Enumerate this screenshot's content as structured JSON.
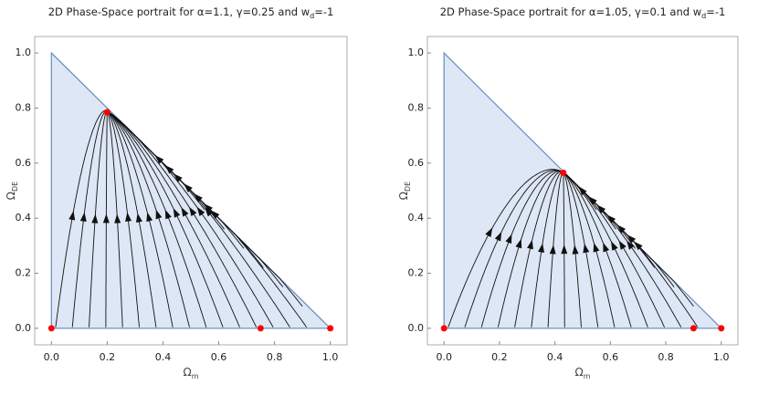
{
  "chart_data": [
    {
      "type": "stream",
      "title": "2D Phase-Space portrait for α=1.1, γ=0.25 and w",
      "title_subscript": "d",
      "title_end": "=-1",
      "xlabel": "Ω",
      "xlabel_subscript": "m",
      "ylabel": "Ω",
      "ylabel_subscript": "DE",
      "domain": {
        "x": [
          0,
          0,
          1
        ],
        "y": [
          0,
          1,
          0
        ],
        "color": "#dde7f5",
        "edge_color": "#7193c2"
      },
      "series": [
        {
          "name": "fixed points",
          "color": "#ff0000",
          "x": [
            0,
            0.2,
            0.75,
            1
          ],
          "values": [
            0,
            0.785,
            0,
            0
          ]
        }
      ],
      "xlim": [
        -0.06,
        1.06
      ],
      "ylim": [
        -0.06,
        1.06
      ],
      "xticks": [
        {
          "value": 0,
          "label": "0.0"
        },
        0.2,
        0.4,
        0.6,
        0.8,
        {
          "value": 1,
          "label": "1.0"
        }
      ],
      "yticks": [
        {
          "value": 0,
          "label": "0.0"
        },
        0.2,
        0.4,
        0.6,
        0.8,
        {
          "value": 1,
          "label": "1.0"
        }
      ]
    },
    {
      "type": "stream",
      "title": "2D Phase-Space portrait for α=1.05, γ=0.1 and w",
      "title_subscript": "d",
      "title_end": "=-1",
      "xlabel": "Ω",
      "xlabel_subscript": "m",
      "ylabel": "Ω",
      "ylabel_subscript": "DE",
      "domain": {
        "x": [
          0,
          0,
          1
        ],
        "y": [
          0,
          1,
          0
        ],
        "color": "#dde7f5",
        "edge_color": "#7193c2"
      },
      "series": [
        {
          "name": "fixed points",
          "color": "#ff0000",
          "x": [
            0,
            0.43,
            0.9,
            1
          ],
          "values": [
            0,
            0.565,
            0,
            0
          ]
        }
      ],
      "xlim": [
        -0.06,
        1.06
      ],
      "ylim": [
        -0.06,
        1.06
      ],
      "xticks": [
        {
          "value": 0,
          "label": "0.0"
        },
        0.2,
        0.4,
        0.6,
        0.8,
        {
          "value": 1,
          "label": "1.0"
        }
      ],
      "yticks": [
        {
          "value": 0,
          "label": "0.0"
        },
        0.2,
        0.4,
        0.6,
        0.8,
        {
          "value": 1,
          "label": "1.0"
        }
      ]
    }
  ]
}
